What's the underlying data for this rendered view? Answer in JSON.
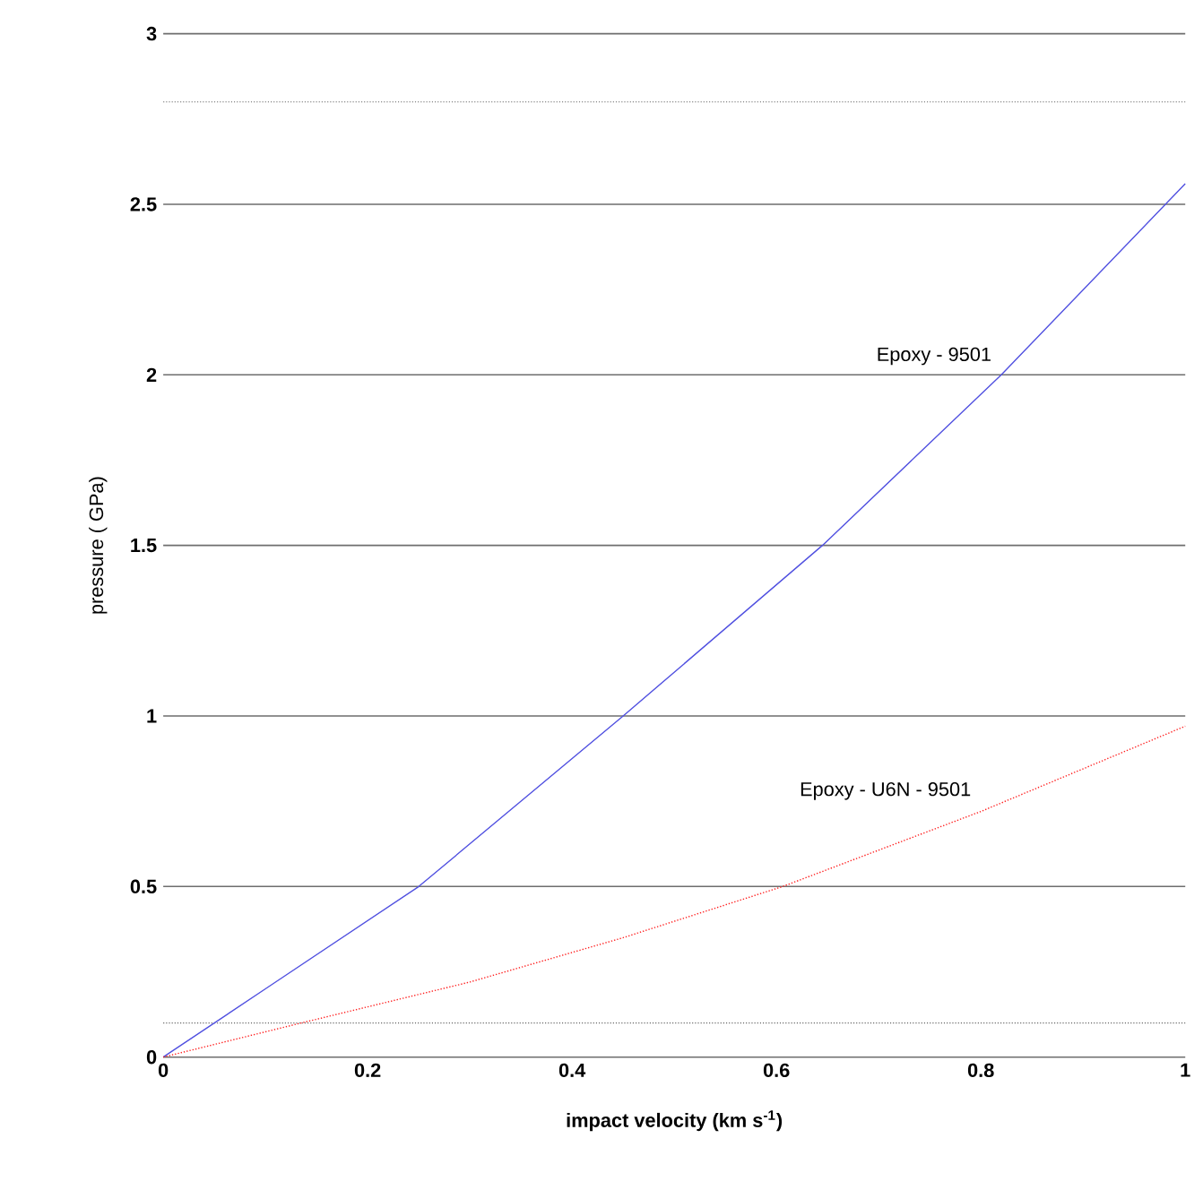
{
  "chart_data": {
    "type": "line",
    "xlabel": "impact velocity (km s$^{-1}$)",
    "ylabel": "pressure ( GPa)",
    "x": [
      0,
      0.05,
      0.1,
      0.25,
      0.45,
      0.645,
      0.82,
      1
    ],
    "xlim": [
      0,
      1
    ],
    "xticks": [
      0,
      0.2,
      0.4,
      0.6,
      0.8,
      1
    ],
    "ylim": [
      0,
      3
    ],
    "yticks": [
      0,
      0.5,
      1,
      1.5,
      2,
      2.5,
      3
    ],
    "grid": "y",
    "series": [
      {
        "name": "Epoxy - 9501",
        "color": "#5050e0",
        "line_style": "solid",
        "values": [
          0,
          0.1,
          0.2,
          0.5,
          1.0,
          1.5,
          2.0,
          2.56
        ]
      },
      {
        "name": "Epoxy - U6N - 9501",
        "color": "#ff2020",
        "line_style": "dotted",
        "x": [
          0,
          0.135,
          0.3,
          0.45,
          0.606,
          0.8,
          1
        ],
        "values": [
          0,
          0.1,
          0.22,
          0.35,
          0.5,
          0.72,
          0.97
        ]
      }
    ],
    "ref_lines": [
      {
        "axis": "y",
        "value": 0.1,
        "color": "#666666",
        "line_style": "dotted"
      },
      {
        "axis": "y",
        "value": 2.8,
        "color": "#666666",
        "line_style": "dotted"
      }
    ]
  }
}
